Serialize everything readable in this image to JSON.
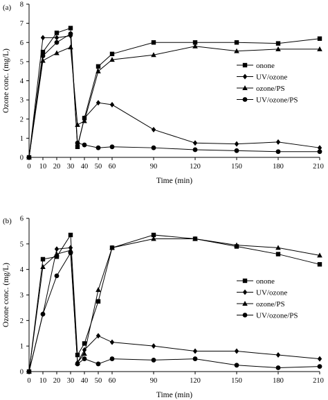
{
  "chart_data": [
    {
      "type": "line",
      "panel_label": "(a)",
      "xlabel": "Time (min)",
      "ylabel": "Ozone conc. (mg/L)",
      "xlim": [
        0,
        210
      ],
      "ylim": [
        0,
        8
      ],
      "xticks": [
        0,
        10,
        20,
        30,
        40,
        50,
        60,
        90,
        120,
        150,
        180,
        210
      ],
      "xtick_labels": [
        "0",
        "10",
        "20",
        "30",
        "40",
        "50",
        "60",
        "90",
        "120",
        "150",
        "180",
        "210"
      ],
      "yticks": [
        0,
        1,
        2,
        3,
        4,
        5,
        6,
        7,
        8
      ],
      "legend_position": "right",
      "series": [
        {
          "name": "onone",
          "marker": "square",
          "x": [
            0,
            10,
            20,
            30,
            35,
            40,
            50,
            60,
            90,
            120,
            150,
            180,
            210
          ],
          "y": [
            0,
            5.5,
            6.5,
            6.75,
            0.55,
            2.05,
            4.75,
            5.4,
            6.0,
            6.0,
            6.0,
            5.95,
            6.2
          ]
        },
        {
          "name": "UV/ozone",
          "marker": "diamond",
          "x": [
            0,
            10,
            20,
            30,
            35,
            40,
            50,
            60,
            90,
            120,
            150,
            180,
            210
          ],
          "y": [
            0,
            6.25,
            6.25,
            6.35,
            0.6,
            2.05,
            2.85,
            2.75,
            1.45,
            0.75,
            0.7,
            0.8,
            0.5
          ]
        },
        {
          "name": "ozone/PS",
          "marker": "triangle",
          "x": [
            0,
            10,
            20,
            30,
            35,
            40,
            50,
            60,
            90,
            120,
            150,
            180,
            210
          ],
          "y": [
            0,
            5.05,
            5.45,
            5.75,
            1.7,
            1.9,
            4.5,
            5.1,
            5.35,
            5.8,
            5.55,
            5.65,
            5.65
          ]
        },
        {
          "name": "UV/ozone/PS",
          "marker": "circle",
          "x": [
            0,
            10,
            20,
            30,
            35,
            40,
            50,
            60,
            90,
            120,
            150,
            180,
            210
          ],
          "y": [
            0,
            5.3,
            6.0,
            6.45,
            0.75,
            0.65,
            0.5,
            0.55,
            0.5,
            0.4,
            0.35,
            0.3,
            0.3
          ]
        }
      ]
    },
    {
      "type": "line",
      "panel_label": "(b)",
      "xlabel": "Time (min)",
      "ylabel": "Ozone conc. (mg/L)",
      "xlim": [
        0,
        210
      ],
      "ylim": [
        0,
        6
      ],
      "xticks": [
        0,
        10,
        20,
        30,
        40,
        50,
        60,
        90,
        120,
        150,
        180,
        210
      ],
      "xtick_labels": [
        "0",
        "10",
        "20",
        "30",
        "40",
        "50",
        "60",
        "90",
        "120",
        "150",
        "180",
        "210"
      ],
      "yticks": [
        0,
        1,
        2,
        3,
        4,
        5,
        6
      ],
      "legend_position": "right",
      "series": [
        {
          "name": "onone",
          "marker": "square",
          "x": [
            0,
            10,
            20,
            30,
            35,
            40,
            50,
            60,
            90,
            120,
            150,
            180,
            210
          ],
          "y": [
            0,
            4.4,
            4.5,
            5.35,
            0.65,
            1.1,
            2.75,
            4.85,
            5.35,
            5.2,
            4.9,
            4.6,
            4.2
          ]
        },
        {
          "name": "UV/ozone",
          "marker": "diamond",
          "x": [
            0,
            10,
            20,
            30,
            35,
            40,
            50,
            60,
            90,
            120,
            150,
            180,
            210
          ],
          "y": [
            0,
            2.25,
            4.8,
            4.85,
            0.35,
            0.85,
            1.4,
            1.15,
            1.0,
            0.8,
            0.8,
            0.65,
            0.5
          ]
        },
        {
          "name": "ozone/PS",
          "marker": "triangle",
          "x": [
            0,
            10,
            20,
            30,
            35,
            40,
            50,
            60,
            90,
            120,
            150,
            180,
            210
          ],
          "y": [
            0,
            4.1,
            4.6,
            4.75,
            0.35,
            0.7,
            3.2,
            4.85,
            5.2,
            5.2,
            4.95,
            4.85,
            4.55
          ]
        },
        {
          "name": "UV/ozone/PS",
          "marker": "circle",
          "x": [
            0,
            10,
            20,
            30,
            35,
            40,
            50,
            60,
            90,
            120,
            150,
            180,
            210
          ],
          "y": [
            0,
            2.25,
            3.75,
            4.65,
            0.3,
            0.5,
            0.3,
            0.5,
            0.45,
            0.5,
            0.25,
            0.15,
            0.2
          ]
        }
      ]
    }
  ]
}
